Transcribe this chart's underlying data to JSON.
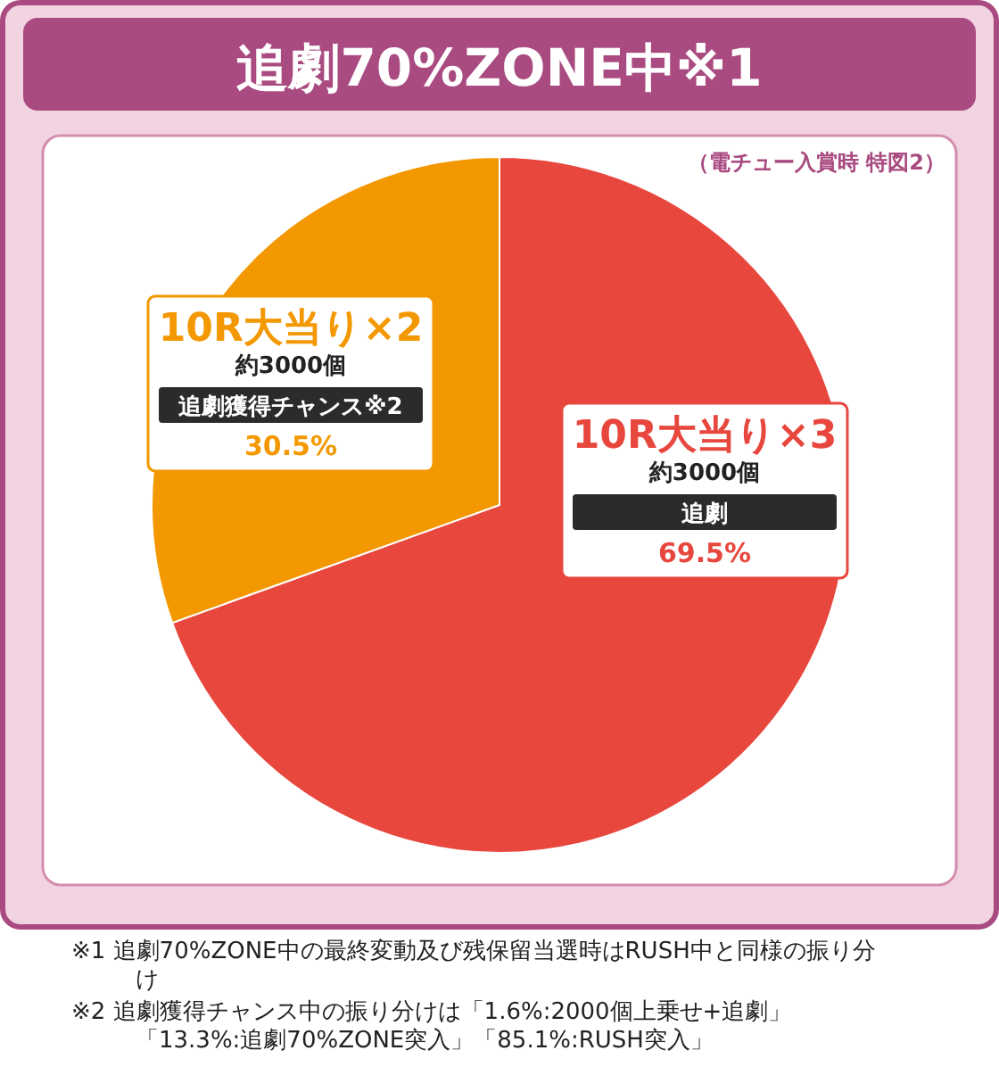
{
  "chart_data": {
    "type": "pie",
    "title": "追劇70%ZONE中※1",
    "subtitle": "（電チュー入賞時 特図2）",
    "categories": [
      "10R大当り×3",
      "10R大当り×2"
    ],
    "values": [
      69.5,
      30.5
    ],
    "colors": [
      "#e8473e",
      "#f39800"
    ],
    "value_labels": [
      "69.5%",
      "30.5%"
    ],
    "annotations": [
      "約3000個",
      "追劇",
      "約3000個",
      "追劇獲得チャンス※2",
      "※1 追劇70%ZONE中の最終変動及び残保留当選時はRUSH中と同様の振り分け",
      "※2 追劇獲得チャンス中の振り分けは「1.6%:2000個上乗せ+追劇」「13.3%:追劇70%ZONE突入」「85.1%:RUSH突入」"
    ]
  }
}
